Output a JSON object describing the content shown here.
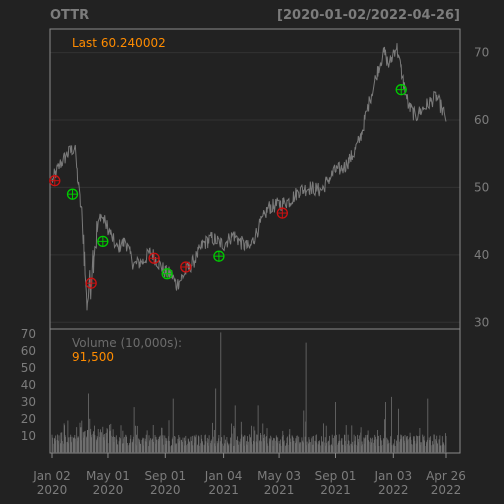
{
  "header": {
    "symbol": "OTTR",
    "range": "[2020-01-02/2022-04-26]"
  },
  "colors": {
    "background": "#222222",
    "frame": "#8a8a8a",
    "grid": "#333333",
    "price_line": "#7a7a7a",
    "volume_bar": "#6f6f6f",
    "accent": "#ff8c00",
    "label": "#7c7c7c",
    "buy_marker": "#00cc00",
    "sell_marker": "#cc1111"
  },
  "chart_data": [
    {
      "type": "line",
      "name": "price",
      "legend_label": "Last",
      "legend_value": "60.240002",
      "ylim": [
        29,
        73.5
      ],
      "yticks": [
        30,
        40,
        50,
        60,
        70
      ],
      "xticks": [
        {
          "date": "2020-01-02",
          "label": [
            "Jan 02",
            "2020"
          ]
        },
        {
          "date": "2020-05-01",
          "label": [
            "May 01",
            "2020"
          ]
        },
        {
          "date": "2020-09-01",
          "label": [
            "Sep 01",
            "2020"
          ]
        },
        {
          "date": "2021-01-04",
          "label": [
            "Jan 04",
            "2021"
          ]
        },
        {
          "date": "2021-05-03",
          "label": [
            "May 03",
            "2021"
          ]
        },
        {
          "date": "2021-09-01",
          "label": [
            "Sep 01",
            "2021"
          ]
        },
        {
          "date": "2022-01-03",
          "label": [
            "Jan 03",
            "2022"
          ]
        },
        {
          "date": "2022-04-26",
          "label": [
            "Apr 26",
            "2022"
          ]
        }
      ],
      "x_range": [
        "2020-01-02",
        "2022-04-26"
      ],
      "price_points": [
        [
          "2020-01-02",
          51.0
        ],
        [
          "2020-01-20",
          53.5
        ],
        [
          "2020-02-05",
          55.0
        ],
        [
          "2020-02-20",
          56.0
        ],
        [
          "2020-02-28",
          50.0
        ],
        [
          "2020-03-09",
          44.0
        ],
        [
          "2020-03-16",
          33.0
        ],
        [
          "2020-03-23",
          35.0
        ],
        [
          "2020-04-01",
          41.0
        ],
        [
          "2020-04-15",
          46.0
        ],
        [
          "2020-05-01",
          44.0
        ],
        [
          "2020-05-20",
          41.0
        ],
        [
          "2020-06-08",
          42.0
        ],
        [
          "2020-06-25",
          38.5
        ],
        [
          "2020-07-15",
          39.0
        ],
        [
          "2020-08-01",
          40.5
        ],
        [
          "2020-08-15",
          39.0
        ],
        [
          "2020-09-01",
          37.5
        ],
        [
          "2020-09-15",
          37.0
        ],
        [
          "2020-09-25",
          35.5
        ],
        [
          "2020-10-15",
          37.5
        ],
        [
          "2020-11-01",
          39.0
        ],
        [
          "2020-11-20",
          41.5
        ],
        [
          "2020-12-10",
          42.5
        ],
        [
          "2021-01-04",
          41.5
        ],
        [
          "2021-01-25",
          43.0
        ],
        [
          "2021-02-15",
          41.5
        ],
        [
          "2021-03-01",
          41.0
        ],
        [
          "2021-03-20",
          44.0
        ],
        [
          "2021-04-10",
          47.0
        ],
        [
          "2021-05-03",
          47.5
        ],
        [
          "2021-05-25",
          48.0
        ],
        [
          "2021-06-15",
          49.5
        ],
        [
          "2021-07-10",
          50.0
        ],
        [
          "2021-08-01",
          49.5
        ],
        [
          "2021-08-20",
          51.5
        ],
        [
          "2021-09-01",
          52.5
        ],
        [
          "2021-09-20",
          53.0
        ],
        [
          "2021-10-10",
          55.0
        ],
        [
          "2021-10-25",
          57.5
        ],
        [
          "2021-11-10",
          62.0
        ],
        [
          "2021-11-25",
          66.0
        ],
        [
          "2021-12-05",
          68.5
        ],
        [
          "2021-12-15",
          70.0
        ],
        [
          "2021-12-25",
          68.0
        ],
        [
          "2022-01-03",
          70.0
        ],
        [
          "2022-01-10",
          71.0
        ],
        [
          "2022-01-25",
          65.5
        ],
        [
          "2022-02-05",
          62.0
        ],
        [
          "2022-02-20",
          60.5
        ],
        [
          "2022-03-05",
          61.5
        ],
        [
          "2022-03-20",
          62.5
        ],
        [
          "2022-04-05",
          63.5
        ],
        [
          "2022-04-15",
          62.0
        ],
        [
          "2022-04-26",
          60.24
        ]
      ],
      "buy_signals": [
        [
          "2020-02-15",
          49.0
        ],
        [
          "2020-04-20",
          42.0
        ],
        [
          "2020-09-05",
          37.2
        ],
        [
          "2020-12-25",
          39.8
        ],
        [
          "2022-01-20",
          64.5
        ]
      ],
      "sell_signals": [
        [
          "2020-01-08",
          51.0
        ],
        [
          "2020-03-26",
          35.8
        ],
        [
          "2020-08-08",
          39.5
        ],
        [
          "2020-10-15",
          38.2
        ],
        [
          "2021-05-10",
          46.2
        ]
      ]
    },
    {
      "type": "bar",
      "name": "volume",
      "legend_label": "Volume (10,000s):",
      "legend_value": "91,500",
      "ylim": [
        0,
        73
      ],
      "yticks": [
        10,
        20,
        30,
        40,
        50,
        60,
        70
      ],
      "spikes": [
        [
          "2020-03-20",
          35
        ],
        [
          "2020-06-26",
          27
        ],
        [
          "2020-09-18",
          32
        ],
        [
          "2020-12-18",
          38
        ],
        [
          "2021-03-19",
          28
        ],
        [
          "2021-06-25",
          25
        ],
        [
          "2021-09-01",
          30
        ],
        [
          "2021-12-17",
          30
        ],
        [
          "2021-12-30",
          33
        ],
        [
          "2022-03-18",
          32
        ],
        [
          "2020-12-29",
          71
        ],
        [
          "2021-06-30",
          65
        ],
        [
          "2020-05-10",
          26
        ],
        [
          "2021-01-29",
          28
        ],
        [
          "2022-01-14",
          26
        ]
      ]
    }
  ]
}
